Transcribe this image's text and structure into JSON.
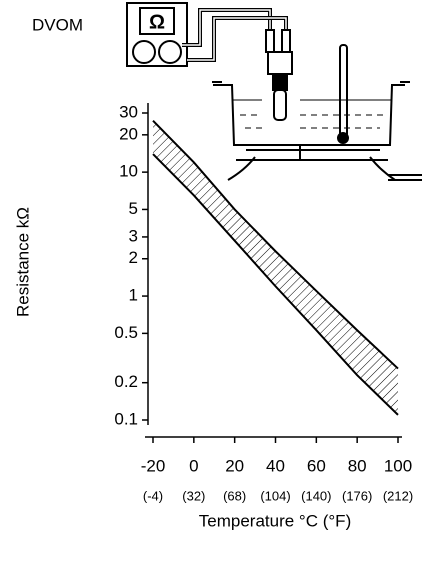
{
  "chart_data": {
    "type": "band",
    "ylabel": "Resistance kΩ",
    "xlabel": "Temperature °C (°F)",
    "x": [
      -20,
      0,
      20,
      40,
      60,
      80,
      100
    ],
    "series": [
      {
        "color": "#000000",
        "values": [
          26,
          12,
          5,
          2.3,
          1.1,
          0.53,
          0.26
        ]
      },
      {
        "color": "#000000",
        "values": [
          14,
          6.5,
          2.8,
          1.2,
          0.53,
          0.23,
          0.11
        ]
      }
    ],
    "log_y": true,
    "hatch": true,
    "ylim": [
      0.1,
      30
    ],
    "yticks": [
      0.1,
      0.2,
      0.5,
      1,
      2,
      3,
      5,
      10,
      20,
      30
    ],
    "xlim": [
      -20,
      100
    ],
    "xticks": [
      -20,
      0,
      20,
      40,
      60,
      80,
      100
    ],
    "xticks_f": [
      {
        "value": -20,
        "label": "(-4)"
      },
      {
        "value": 0,
        "label": "(32)"
      },
      {
        "value": 20,
        "label": "(68)"
      },
      {
        "value": 40,
        "label": "(104)"
      },
      {
        "value": 60,
        "label": "(140)"
      },
      {
        "value": 80,
        "label": "(176)"
      },
      {
        "value": 100,
        "label": "(212)"
      }
    ]
  },
  "illustration": {
    "meter_label": "DVOM",
    "meter_symbol": "Ω"
  }
}
